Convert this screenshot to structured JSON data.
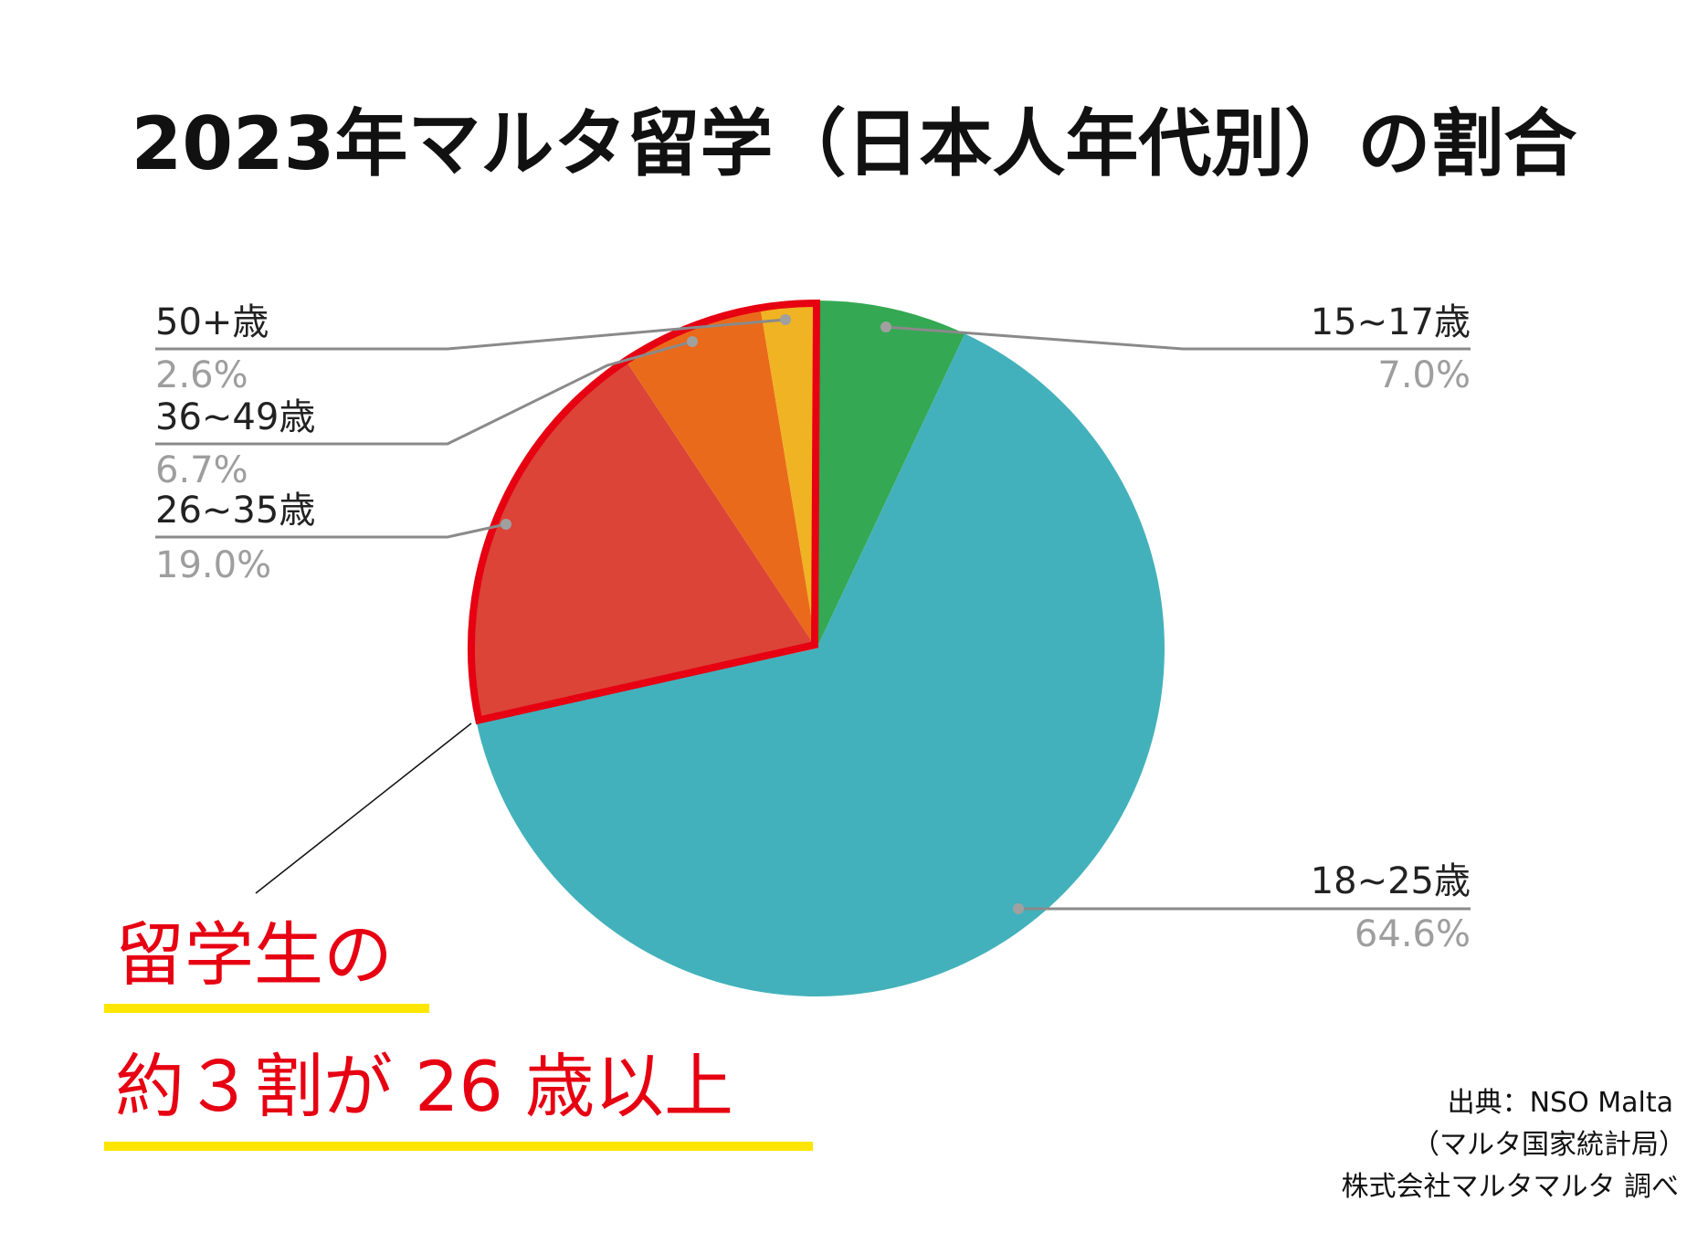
{
  "chart_data": {
    "type": "pie",
    "title": "2023年マルタ留学（日本人年代別）の割合",
    "start_angle": "top",
    "direction": "clockwise",
    "slices": [
      {
        "label": "15~17歳",
        "value": 7.0,
        "pct_label": "7.0%",
        "color": "#34a853"
      },
      {
        "label": "18~25歳",
        "value": 64.6,
        "pct_label": "64.6%",
        "color": "#43b1bb"
      },
      {
        "label": "26~35歳",
        "value": 19.0,
        "pct_label": "19.0%",
        "color": "#db4437"
      },
      {
        "label": "36~49歳",
        "value": 6.7,
        "pct_label": "6.7%",
        "color": "#ea6a1b"
      },
      {
        "label": "50+歳",
        "value": 2.6,
        "pct_label": "2.6%",
        "color": "#f0b323"
      }
    ],
    "highlight": {
      "slices": [
        "26~35歳",
        "36~49歳",
        "50+歳"
      ],
      "color": "#e60012"
    },
    "annotation": {
      "line1": "留学生の",
      "line2": "約３割が 26 歳以上",
      "underline_color": "#ffe600"
    }
  },
  "source": {
    "line1": "出典：NSO Malta",
    "line2": "（マルタ国家統計局）",
    "line3": "株式会社マルタマルタ 調べ"
  }
}
